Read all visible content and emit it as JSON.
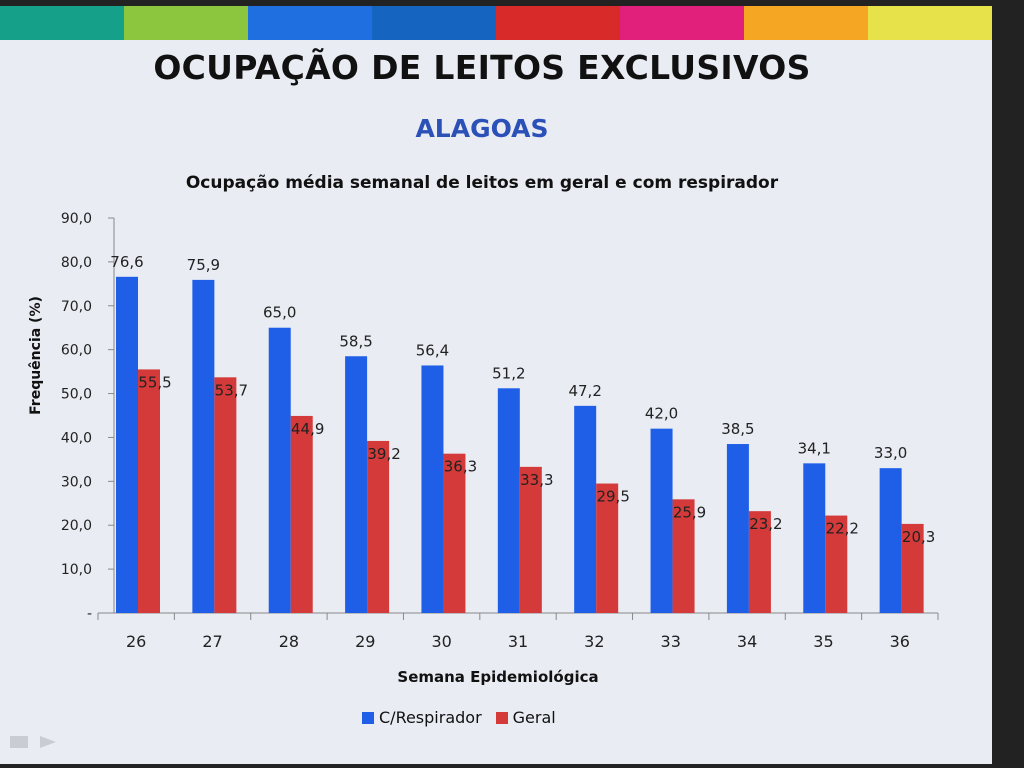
{
  "slide": {
    "title": "OCUPAÇÃO DE LEITOS EXCLUSIVOS",
    "subtitle": "ALAGOAS",
    "strip_colors": [
      "#15a08a",
      "#8cc63f",
      "#1f6fe0",
      "#1565c0",
      "#d92a2a",
      "#e0207a",
      "#f5a623",
      "#e8e24a"
    ]
  },
  "chart_data": {
    "type": "bar",
    "title": "Ocupação média semanal de leitos em geral e com respirador",
    "xlabel": "Semana Epidemiológica",
    "ylabel": "Frequência (%)",
    "ylim": [
      0,
      90
    ],
    "yticks": [
      "-",
      "10,0",
      "20,0",
      "30,0",
      "40,0",
      "50,0",
      "60,0",
      "70,0",
      "80,0",
      "90,0"
    ],
    "grid": false,
    "legend": "bottom",
    "categories": [
      "26",
      "27",
      "28",
      "29",
      "30",
      "31",
      "32",
      "33",
      "34",
      "35",
      "36"
    ],
    "series": [
      {
        "name": "C/Respirador",
        "color": "#1f5fe8",
        "values": [
          76.6,
          75.9,
          65.0,
          58.5,
          56.4,
          51.2,
          47.2,
          42.0,
          38.5,
          34.1,
          33.0
        ],
        "labels": [
          "76,6",
          "75,9",
          "65,0",
          "58,5",
          "56,4",
          "51,2",
          "47,2",
          "42,0",
          "38,5",
          "34,1",
          "33,0"
        ]
      },
      {
        "name": "Geral",
        "color": "#d43a3a",
        "values": [
          55.5,
          53.7,
          44.9,
          39.2,
          36.3,
          33.3,
          29.5,
          25.9,
          23.2,
          22.2,
          20.3
        ],
        "labels": [
          "55,5",
          "53,7",
          "44,9",
          "39,2",
          "36,3",
          "33,3",
          "29,5",
          "25,9",
          "23,2",
          "22,2",
          "20,3"
        ]
      }
    ]
  }
}
